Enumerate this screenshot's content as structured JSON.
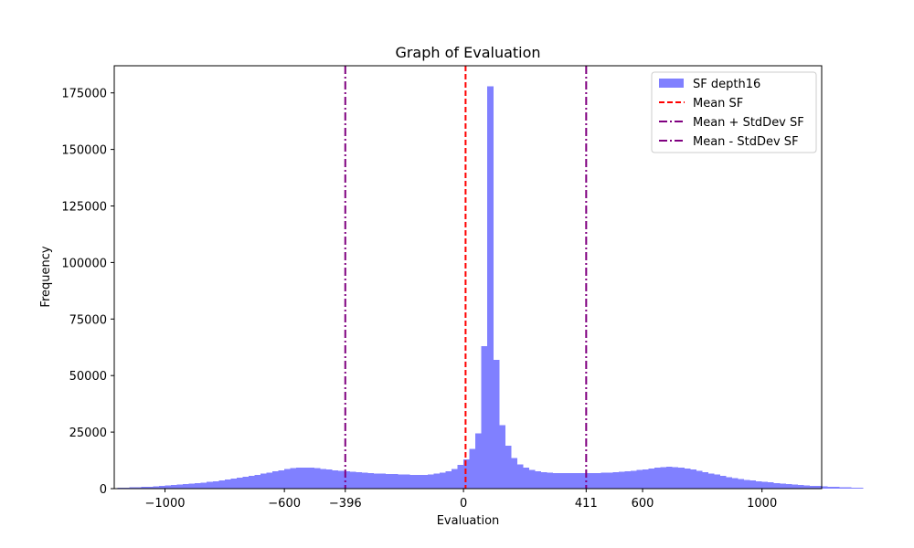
{
  "chart_data": {
    "type": "bar",
    "title": "Graph of Evaluation",
    "xlabel": "Evaluation",
    "ylabel": "Frequency",
    "xlim": [
      -1170,
      1200
    ],
    "ylim": [
      0,
      187000
    ],
    "x_ticks": [
      -1000,
      -600,
      -396,
      0,
      411,
      600,
      1000
    ],
    "x_tick_labels": [
      "−1000",
      "−600",
      "−396",
      "0",
      "411",
      "600",
      "1000"
    ],
    "y_ticks": [
      0,
      25000,
      50000,
      75000,
      100000,
      125000,
      150000,
      175000
    ],
    "y_tick_labels": [
      "0",
      "25000",
      "50000",
      "75000",
      "100000",
      "125000",
      "150000",
      "175000"
    ],
    "bin_start": -1160,
    "bin_width": 20,
    "bin_counts": [
      400,
      500,
      600,
      700,
      800,
      900,
      1100,
      1200,
      1400,
      1600,
      1800,
      2000,
      2200,
      2500,
      2700,
      3000,
      3300,
      3600,
      4000,
      4400,
      4800,
      5200,
      5700,
      6100,
      6600,
      7100,
      7600,
      8100,
      8600,
      9000,
      9200,
      9300,
      9200,
      9000,
      8700,
      8400,
      8100,
      7900,
      7600,
      7400,
      7200,
      7000,
      6800,
      6700,
      6600,
      6500,
      6400,
      6300,
      6200,
      6100,
      6000,
      6100,
      6300,
      6600,
      7000,
      7700,
      8700,
      10500,
      13000,
      17500,
      24500,
      63000,
      178000,
      57000,
      28000,
      19000,
      13500,
      10800,
      9200,
      8300,
      7700,
      7300,
      7100,
      6900,
      6800,
      6800,
      6800,
      6900,
      6900,
      6900,
      6900,
      7000,
      7100,
      7200,
      7400,
      7600,
      7900,
      8200,
      8500,
      8900,
      9200,
      9400,
      9600,
      9500,
      9300,
      8900,
      8400,
      7900,
      7300,
      6700,
      6200,
      5600,
      5100,
      4700,
      4300,
      3900,
      3600,
      3300,
      3000,
      2800,
      2500,
      2300,
      2100,
      1900,
      1700,
      1500,
      1300,
      1200,
      1000,
      900,
      800,
      700,
      600,
      500,
      400
    ],
    "vertical_lines": [
      {
        "name": "Mean SF",
        "x": 7,
        "color": "#ff0000",
        "style": "dashed"
      },
      {
        "name": "Mean + StdDev SF",
        "x": 411,
        "color": "#800080",
        "style": "dashdot"
      },
      {
        "name": "Mean - StdDev SF",
        "x": -396,
        "color": "#800080",
        "style": "dashdot"
      }
    ],
    "legend": {
      "placement": "top-right",
      "entries": [
        {
          "label": "SF depth16",
          "color": "#8080ff",
          "kind": "patch"
        },
        {
          "label": "Mean SF",
          "color": "#ff0000",
          "kind": "dashed"
        },
        {
          "label": "Mean + StdDev SF",
          "color": "#800080",
          "kind": "dashdot"
        },
        {
          "label": "Mean - StdDev SF",
          "color": "#800080",
          "kind": "dashdot"
        }
      ]
    },
    "colors": {
      "bars": "#8080ff",
      "mean": "#ff0000",
      "stddev": "#800080"
    }
  }
}
